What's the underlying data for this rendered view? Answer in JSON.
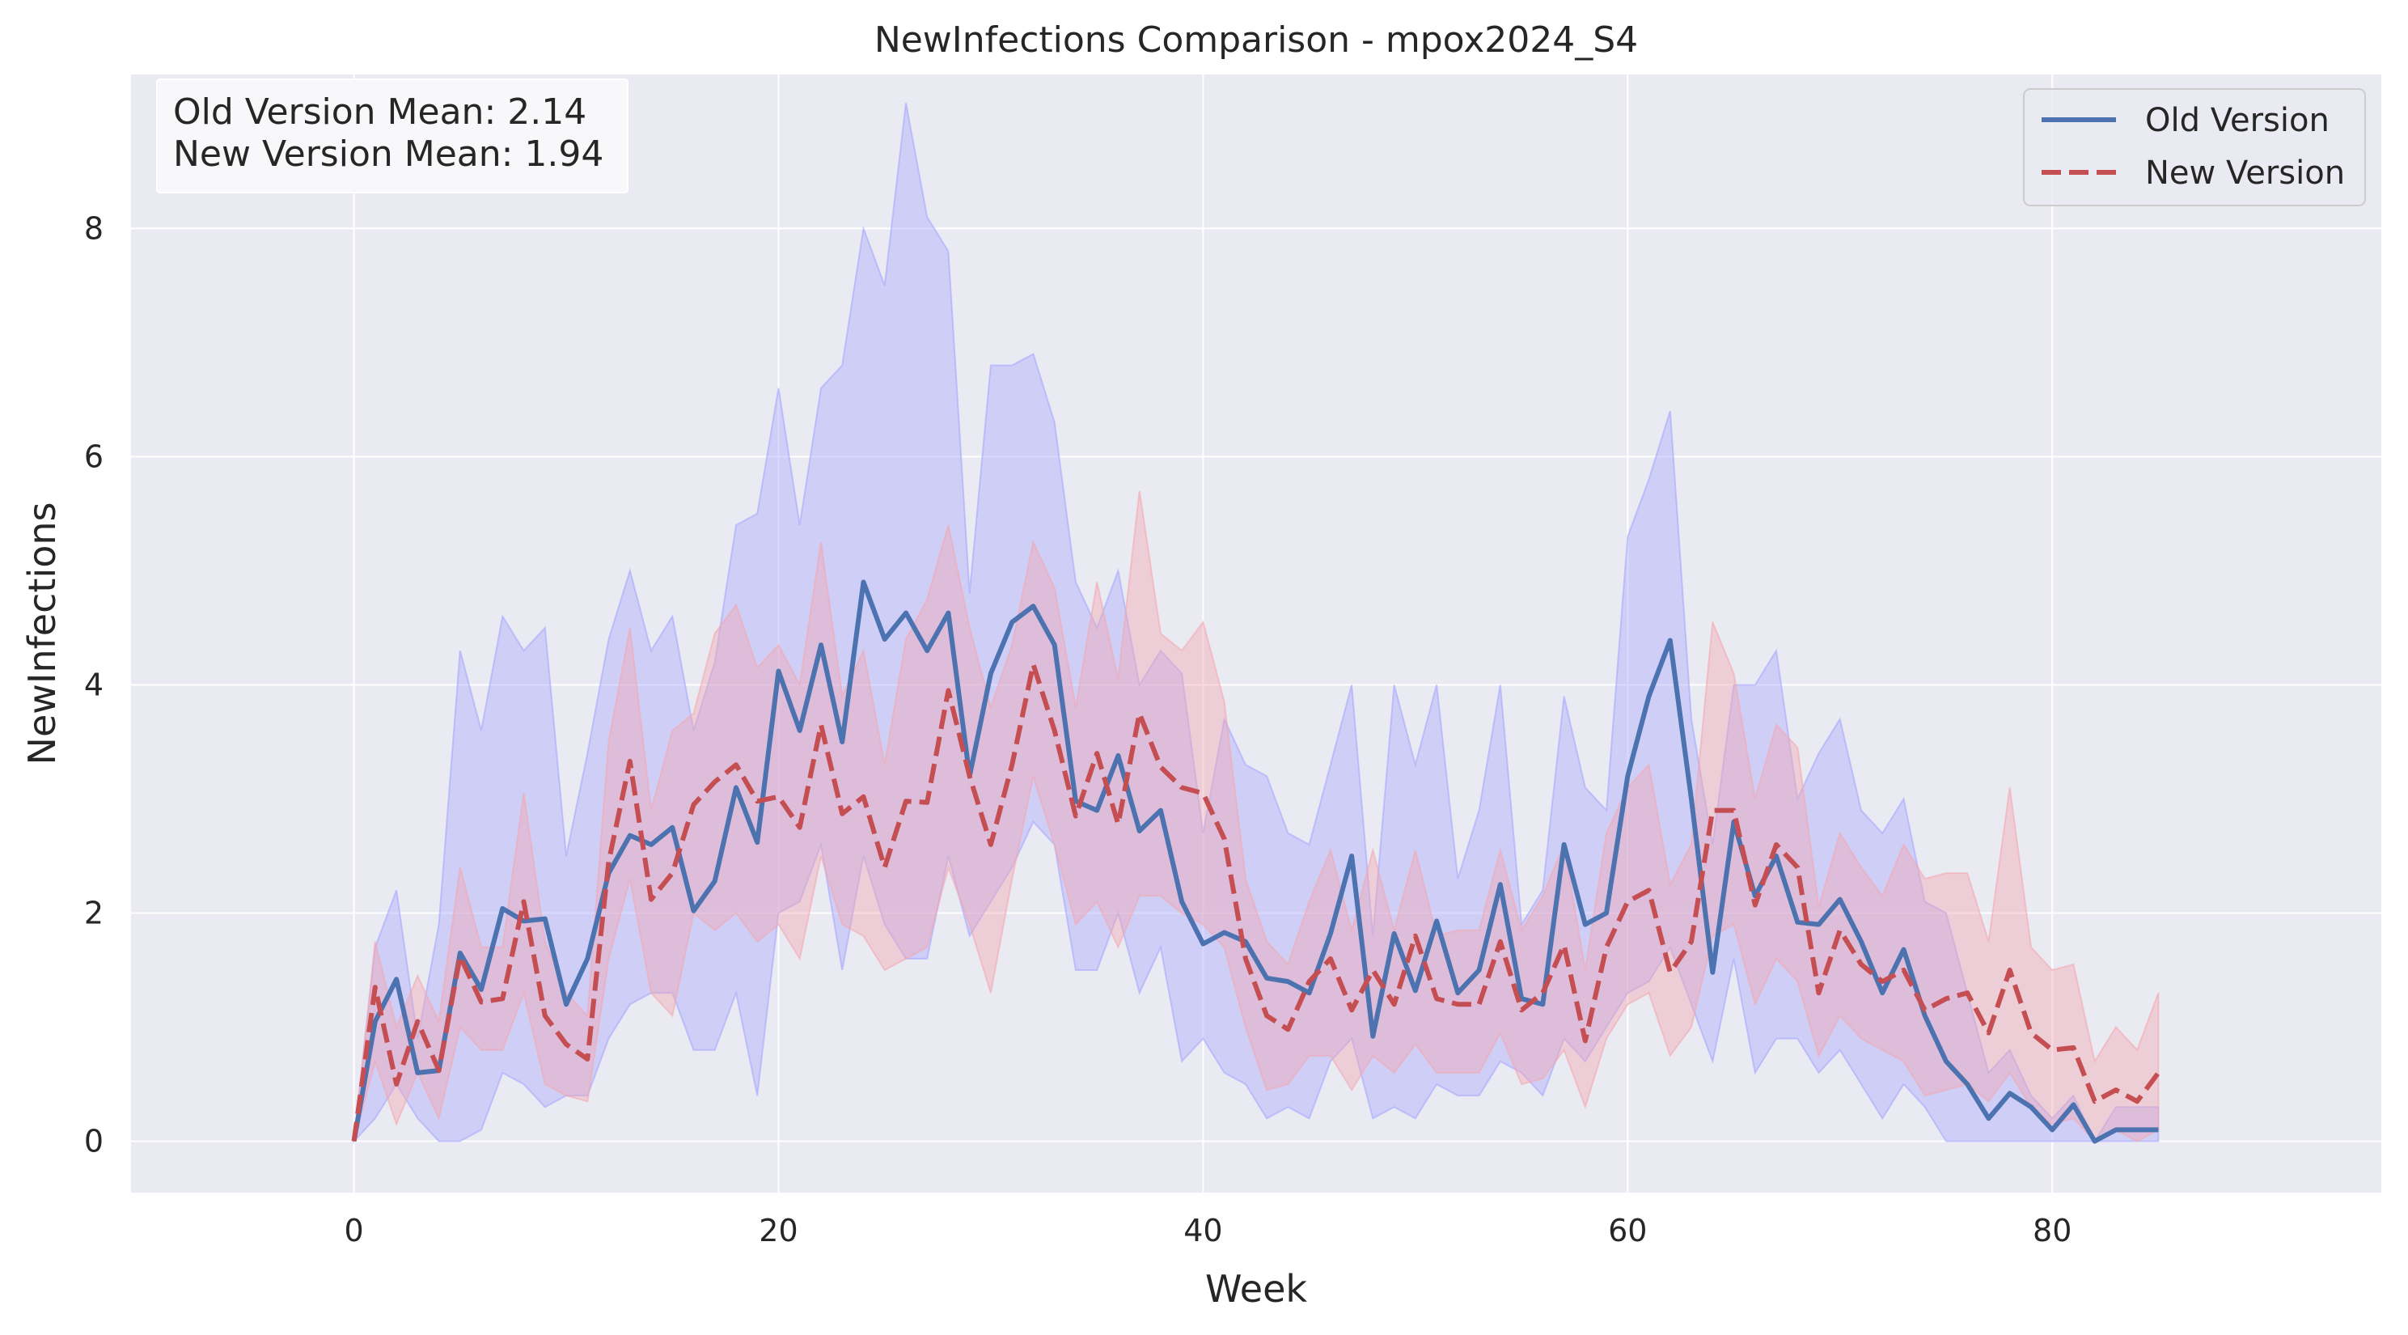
{
  "chart_data": {
    "type": "line",
    "title": "NewInfections Comparison - mpox2024_S4",
    "xlabel": "Week",
    "ylabel": "NewInfections",
    "xlim": [
      -10.5,
      95.5
    ],
    "ylim": [
      -0.45,
      9.35
    ],
    "xticks": [
      0,
      20,
      40,
      60,
      80
    ],
    "yticks": [
      0,
      2,
      4,
      6,
      8
    ],
    "grid": true,
    "legend_position": "top-right",
    "annotation": [
      "Old Version Mean: 2.14",
      "New Version Mean: 1.94"
    ],
    "series": [
      {
        "name": "Old Version",
        "color": "#4c72b0",
        "band_color": "#a7a7ff",
        "style": "solid",
        "x": [
          0,
          1,
          2,
          3,
          4,
          5,
          6,
          7,
          8,
          9,
          10,
          11,
          12,
          13,
          14,
          15,
          16,
          17,
          18,
          19,
          20,
          21,
          22,
          23,
          24,
          25,
          26,
          27,
          28,
          29,
          30,
          31,
          32,
          33,
          34,
          35,
          36,
          37,
          38,
          39,
          40,
          41,
          42,
          43,
          44,
          45,
          46,
          47,
          48,
          49,
          50,
          51,
          52,
          53,
          54,
          55,
          56,
          57,
          58,
          59,
          60,
          61,
          62,
          63,
          64,
          65,
          66,
          67,
          68,
          69,
          70,
          71,
          72,
          73,
          74,
          75,
          76,
          77,
          78,
          79,
          80,
          81,
          82,
          83,
          84,
          85
        ],
        "values": [
          0,
          1.05,
          1.42,
          0.6,
          0.62,
          1.65,
          1.33,
          2.04,
          1.93,
          1.95,
          1.2,
          1.6,
          2.35,
          2.68,
          2.6,
          2.75,
          2.02,
          2.28,
          3.1,
          2.62,
          4.12,
          3.6,
          4.35,
          3.5,
          4.9,
          4.4,
          4.63,
          4.3,
          4.63,
          3.2,
          4.1,
          4.55,
          4.69,
          4.35,
          2.98,
          2.9,
          3.38,
          2.72,
          2.9,
          2.1,
          1.73,
          1.83,
          1.75,
          1.43,
          1.4,
          1.3,
          1.82,
          2.5,
          0.92,
          1.82,
          1.32,
          1.93,
          1.3,
          1.5,
          2.25,
          1.25,
          1.2,
          2.6,
          1.9,
          2.0,
          3.2,
          3.9,
          4.39,
          3.0,
          1.48,
          2.8,
          2.15,
          2.5,
          1.92,
          1.9,
          2.12,
          1.75,
          1.3,
          1.68,
          1.1,
          0.7,
          0.5,
          0.2,
          0.42,
          0.3,
          0.1,
          0.32,
          0.0,
          0.1,
          0.1,
          0.1
        ],
        "lower": [
          0,
          0.2,
          0.5,
          0.2,
          0.0,
          0.0,
          0.1,
          0.6,
          0.5,
          0.3,
          0.4,
          0.4,
          0.9,
          1.2,
          1.3,
          1.3,
          0.8,
          0.8,
          1.3,
          0.4,
          2.0,
          2.1,
          2.6,
          1.5,
          2.5,
          1.9,
          1.6,
          1.6,
          2.5,
          1.8,
          2.1,
          2.4,
          2.8,
          2.6,
          1.5,
          1.5,
          2.0,
          1.3,
          1.7,
          0.7,
          0.9,
          0.6,
          0.5,
          0.2,
          0.3,
          0.2,
          0.7,
          0.9,
          0.2,
          0.3,
          0.2,
          0.5,
          0.4,
          0.4,
          0.7,
          0.6,
          0.4,
          0.9,
          0.7,
          1.0,
          1.3,
          1.4,
          1.7,
          1.2,
          0.7,
          1.6,
          0.6,
          0.9,
          0.9,
          0.6,
          0.8,
          0.5,
          0.2,
          0.5,
          0.3,
          0.0,
          0.0,
          0.0,
          0.0,
          0.0,
          0.0,
          0.0,
          0.0,
          0.0,
          0.0,
          0.0
        ],
        "upper": [
          0,
          1.7,
          2.2,
          0.9,
          1.9,
          4.3,
          3.6,
          4.6,
          4.3,
          4.5,
          2.5,
          3.4,
          4.4,
          5.0,
          4.3,
          4.6,
          3.6,
          4.2,
          5.4,
          5.5,
          6.6,
          5.4,
          6.6,
          6.8,
          8.0,
          7.5,
          9.1,
          8.1,
          7.8,
          4.8,
          6.8,
          6.8,
          6.9,
          6.3,
          4.9,
          4.5,
          5.0,
          4.0,
          4.3,
          4.1,
          2.7,
          3.7,
          3.3,
          3.2,
          2.7,
          2.6,
          3.3,
          4.0,
          1.8,
          4.0,
          3.3,
          4.0,
          2.3,
          2.9,
          4.0,
          1.9,
          2.2,
          3.9,
          3.1,
          2.9,
          5.3,
          5.8,
          6.4,
          3.7,
          2.6,
          4.0,
          4.0,
          4.3,
          3.0,
          3.4,
          3.7,
          2.9,
          2.7,
          3.0,
          2.1,
          2.0,
          1.3,
          0.6,
          0.8,
          0.4,
          0.2,
          0.4,
          0.0,
          0.3,
          0.3,
          0.3
        ]
      },
      {
        "name": "New Version",
        "color": "#c44e52",
        "band_color": "#f4a8b0",
        "style": "dashed",
        "x": [
          0,
          1,
          2,
          3,
          4,
          5,
          6,
          7,
          8,
          9,
          10,
          11,
          12,
          13,
          14,
          15,
          16,
          17,
          18,
          19,
          20,
          21,
          22,
          23,
          24,
          25,
          26,
          27,
          28,
          29,
          30,
          31,
          32,
          33,
          34,
          35,
          36,
          37,
          38,
          39,
          40,
          41,
          42,
          43,
          44,
          45,
          46,
          47,
          48,
          49,
          50,
          51,
          52,
          53,
          54,
          55,
          56,
          57,
          58,
          59,
          60,
          61,
          62,
          63,
          64,
          65,
          66,
          67,
          68,
          69,
          70,
          71,
          72,
          73,
          74,
          75,
          76,
          77,
          78,
          79,
          80,
          81,
          82,
          83,
          84,
          85
        ],
        "values": [
          0,
          1.35,
          0.5,
          1.05,
          0.62,
          1.62,
          1.22,
          1.25,
          2.1,
          1.1,
          0.85,
          0.72,
          2.45,
          3.33,
          2.12,
          2.35,
          2.95,
          3.15,
          3.3,
          2.98,
          3.02,
          2.75,
          3.65,
          2.87,
          3.02,
          2.4,
          2.98,
          2.97,
          3.95,
          3.2,
          2.6,
          3.3,
          4.18,
          3.6,
          2.85,
          3.4,
          2.78,
          3.75,
          3.28,
          3.1,
          3.05,
          2.65,
          1.6,
          1.1,
          0.98,
          1.4,
          1.6,
          1.15,
          1.5,
          1.2,
          1.8,
          1.25,
          1.2,
          1.2,
          1.75,
          1.15,
          1.3,
          1.72,
          0.88,
          1.7,
          2.1,
          2.2,
          1.48,
          1.75,
          2.9,
          2.9,
          2.07,
          2.6,
          2.4,
          1.3,
          1.85,
          1.55,
          1.4,
          1.5,
          1.15,
          1.25,
          1.3,
          0.95,
          1.5,
          0.95,
          0.8,
          0.82,
          0.35,
          0.45,
          0.35,
          0.6
        ],
        "lower": [
          0,
          0.7,
          0.15,
          0.6,
          0.2,
          1.0,
          0.8,
          0.8,
          1.3,
          0.5,
          0.4,
          0.35,
          1.6,
          2.3,
          1.3,
          1.1,
          2.0,
          1.85,
          2.0,
          1.75,
          1.9,
          1.6,
          2.5,
          1.9,
          1.8,
          1.5,
          1.6,
          1.7,
          2.4,
          1.9,
          1.3,
          2.3,
          3.2,
          2.6,
          1.9,
          2.1,
          1.7,
          2.15,
          2.15,
          2.0,
          1.9,
          1.7,
          1.0,
          0.45,
          0.5,
          0.75,
          0.75,
          0.45,
          0.75,
          0.6,
          0.85,
          0.6,
          0.6,
          0.6,
          0.95,
          0.5,
          0.55,
          0.8,
          0.3,
          0.9,
          1.2,
          1.3,
          0.75,
          1.0,
          1.8,
          1.9,
          1.2,
          1.6,
          1.4,
          0.75,
          1.1,
          0.9,
          0.8,
          0.7,
          0.4,
          0.45,
          0.5,
          0.35,
          0.6,
          0.3,
          0.15,
          0.2,
          0.0,
          0.1,
          0.0,
          0.1
        ],
        "upper": [
          0,
          1.75,
          1.0,
          1.45,
          1.05,
          2.4,
          1.7,
          1.7,
          3.05,
          1.75,
          1.3,
          1.1,
          3.5,
          4.5,
          2.9,
          3.6,
          3.75,
          4.45,
          4.7,
          4.15,
          4.35,
          4.0,
          5.25,
          3.9,
          4.3,
          3.3,
          4.4,
          4.75,
          5.4,
          4.5,
          3.8,
          4.35,
          5.25,
          4.85,
          3.8,
          4.9,
          4.05,
          5.7,
          4.45,
          4.3,
          4.55,
          3.85,
          2.3,
          1.75,
          1.55,
          2.1,
          2.55,
          1.85,
          2.55,
          1.85,
          2.55,
          1.8,
          1.85,
          1.85,
          2.55,
          1.85,
          2.15,
          2.6,
          1.5,
          2.7,
          3.1,
          3.3,
          2.25,
          2.6,
          4.55,
          4.1,
          3.0,
          3.65,
          3.45,
          2.05,
          2.7,
          2.4,
          2.15,
          2.6,
          2.3,
          2.35,
          2.35,
          1.75,
          3.1,
          1.7,
          1.5,
          1.55,
          0.7,
          1.0,
          0.8,
          1.3
        ]
      }
    ]
  }
}
